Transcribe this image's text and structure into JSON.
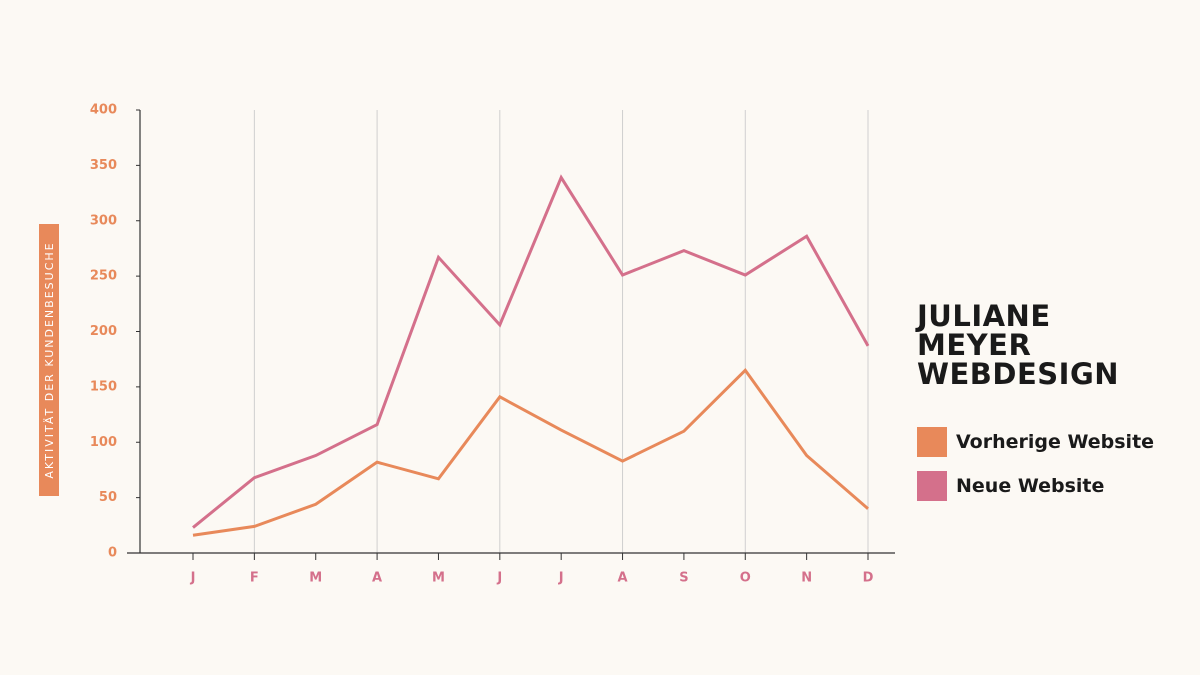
{
  "chart_data": {
    "type": "line",
    "title": "JULIANE MEYER WEBDESIGN",
    "y_label": "AKTIVITÄT DER KUNDENBESUCHE",
    "categories": [
      "J",
      "F",
      "M",
      "A",
      "M",
      "J",
      "J",
      "A",
      "S",
      "O",
      "N",
      "D"
    ],
    "series": [
      {
        "name": "Vorherige Website",
        "color": "#e8895a",
        "values": [
          16,
          24,
          44,
          82,
          67,
          141,
          111,
          83,
          110,
          165,
          88,
          40
        ]
      },
      {
        "name": "Neue Website",
        "color": "#d4708b",
        "values": [
          23,
          68,
          88,
          116,
          267,
          206,
          339,
          251,
          273,
          251,
          286,
          187
        ]
      }
    ],
    "ylim": [
      0,
      400
    ],
    "yticks": [
      0,
      50,
      100,
      150,
      200,
      250,
      300,
      350,
      400
    ],
    "grid": "x",
    "legend": "right",
    "tick_color": "#e8895a",
    "category_color": "#d4708b"
  }
}
